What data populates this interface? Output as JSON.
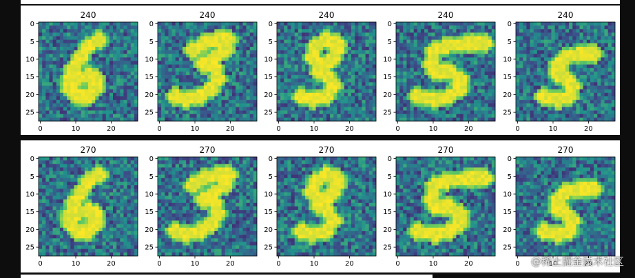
{
  "watermark": "@稀土掘金技术社区",
  "colormap": {
    "low": "#440154",
    "mid": "#21918c",
    "high": "#fde725"
  },
  "chart_data": {
    "type": "heatmap",
    "grid": "28x28",
    "xticks": [
      "0",
      "10",
      "20"
    ],
    "yticks": [
      "0",
      "5",
      "10",
      "15",
      "20",
      "25"
    ],
    "rows": [
      {
        "name": "row-240",
        "titles": [
          "240",
          "240",
          "240",
          "240",
          "240"
        ],
        "digits": [
          "6",
          "3",
          "9",
          "5",
          "5"
        ]
      },
      {
        "name": "row-270",
        "titles": [
          "270",
          "270",
          "270",
          "270",
          "270"
        ],
        "digits": [
          "6",
          "3",
          "9",
          "5",
          "5"
        ]
      }
    ]
  }
}
